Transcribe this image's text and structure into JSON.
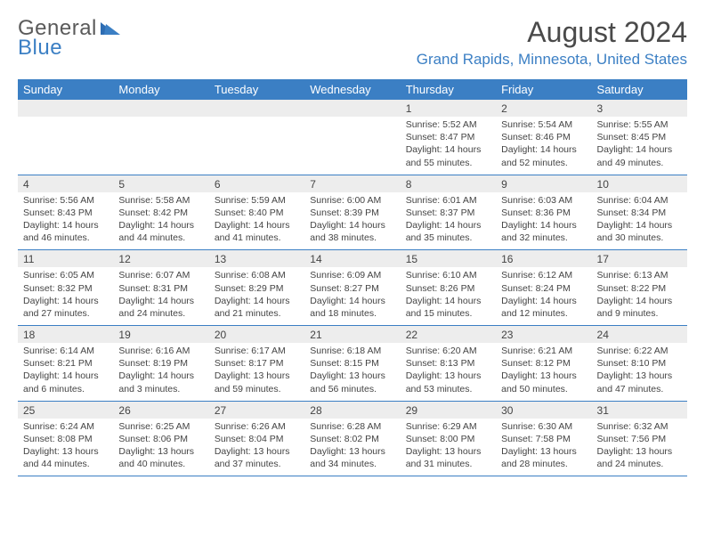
{
  "logo": {
    "text1": "General",
    "text2": "Blue"
  },
  "title": "August 2024",
  "location": "Grand Rapids, Minnesota, United States",
  "colors": {
    "header_bg": "#3b7fc4",
    "header_fg": "#ffffff",
    "daynum_bg": "#ededed",
    "border": "#3b7fc4",
    "text": "#444444",
    "location": "#3b7fc4"
  },
  "dayHeaders": [
    "Sunday",
    "Monday",
    "Tuesday",
    "Wednesday",
    "Thursday",
    "Friday",
    "Saturday"
  ],
  "weeks": [
    [
      null,
      null,
      null,
      null,
      {
        "n": "1",
        "sr": "5:52 AM",
        "ss": "8:47 PM",
        "dl": "14 hours and 55 minutes."
      },
      {
        "n": "2",
        "sr": "5:54 AM",
        "ss": "8:46 PM",
        "dl": "14 hours and 52 minutes."
      },
      {
        "n": "3",
        "sr": "5:55 AM",
        "ss": "8:45 PM",
        "dl": "14 hours and 49 minutes."
      }
    ],
    [
      {
        "n": "4",
        "sr": "5:56 AM",
        "ss": "8:43 PM",
        "dl": "14 hours and 46 minutes."
      },
      {
        "n": "5",
        "sr": "5:58 AM",
        "ss": "8:42 PM",
        "dl": "14 hours and 44 minutes."
      },
      {
        "n": "6",
        "sr": "5:59 AM",
        "ss": "8:40 PM",
        "dl": "14 hours and 41 minutes."
      },
      {
        "n": "7",
        "sr": "6:00 AM",
        "ss": "8:39 PM",
        "dl": "14 hours and 38 minutes."
      },
      {
        "n": "8",
        "sr": "6:01 AM",
        "ss": "8:37 PM",
        "dl": "14 hours and 35 minutes."
      },
      {
        "n": "9",
        "sr": "6:03 AM",
        "ss": "8:36 PM",
        "dl": "14 hours and 32 minutes."
      },
      {
        "n": "10",
        "sr": "6:04 AM",
        "ss": "8:34 PM",
        "dl": "14 hours and 30 minutes."
      }
    ],
    [
      {
        "n": "11",
        "sr": "6:05 AM",
        "ss": "8:32 PM",
        "dl": "14 hours and 27 minutes."
      },
      {
        "n": "12",
        "sr": "6:07 AM",
        "ss": "8:31 PM",
        "dl": "14 hours and 24 minutes."
      },
      {
        "n": "13",
        "sr": "6:08 AM",
        "ss": "8:29 PM",
        "dl": "14 hours and 21 minutes."
      },
      {
        "n": "14",
        "sr": "6:09 AM",
        "ss": "8:27 PM",
        "dl": "14 hours and 18 minutes."
      },
      {
        "n": "15",
        "sr": "6:10 AM",
        "ss": "8:26 PM",
        "dl": "14 hours and 15 minutes."
      },
      {
        "n": "16",
        "sr": "6:12 AM",
        "ss": "8:24 PM",
        "dl": "14 hours and 12 minutes."
      },
      {
        "n": "17",
        "sr": "6:13 AM",
        "ss": "8:22 PM",
        "dl": "14 hours and 9 minutes."
      }
    ],
    [
      {
        "n": "18",
        "sr": "6:14 AM",
        "ss": "8:21 PM",
        "dl": "14 hours and 6 minutes."
      },
      {
        "n": "19",
        "sr": "6:16 AM",
        "ss": "8:19 PM",
        "dl": "14 hours and 3 minutes."
      },
      {
        "n": "20",
        "sr": "6:17 AM",
        "ss": "8:17 PM",
        "dl": "13 hours and 59 minutes."
      },
      {
        "n": "21",
        "sr": "6:18 AM",
        "ss": "8:15 PM",
        "dl": "13 hours and 56 minutes."
      },
      {
        "n": "22",
        "sr": "6:20 AM",
        "ss": "8:13 PM",
        "dl": "13 hours and 53 minutes."
      },
      {
        "n": "23",
        "sr": "6:21 AM",
        "ss": "8:12 PM",
        "dl": "13 hours and 50 minutes."
      },
      {
        "n": "24",
        "sr": "6:22 AM",
        "ss": "8:10 PM",
        "dl": "13 hours and 47 minutes."
      }
    ],
    [
      {
        "n": "25",
        "sr": "6:24 AM",
        "ss": "8:08 PM",
        "dl": "13 hours and 44 minutes."
      },
      {
        "n": "26",
        "sr": "6:25 AM",
        "ss": "8:06 PM",
        "dl": "13 hours and 40 minutes."
      },
      {
        "n": "27",
        "sr": "6:26 AM",
        "ss": "8:04 PM",
        "dl": "13 hours and 37 minutes."
      },
      {
        "n": "28",
        "sr": "6:28 AM",
        "ss": "8:02 PM",
        "dl": "13 hours and 34 minutes."
      },
      {
        "n": "29",
        "sr": "6:29 AM",
        "ss": "8:00 PM",
        "dl": "13 hours and 31 minutes."
      },
      {
        "n": "30",
        "sr": "6:30 AM",
        "ss": "7:58 PM",
        "dl": "13 hours and 28 minutes."
      },
      {
        "n": "31",
        "sr": "6:32 AM",
        "ss": "7:56 PM",
        "dl": "13 hours and 24 minutes."
      }
    ]
  ],
  "labels": {
    "sunrise": "Sunrise:",
    "sunset": "Sunset:",
    "daylight": "Daylight:"
  }
}
